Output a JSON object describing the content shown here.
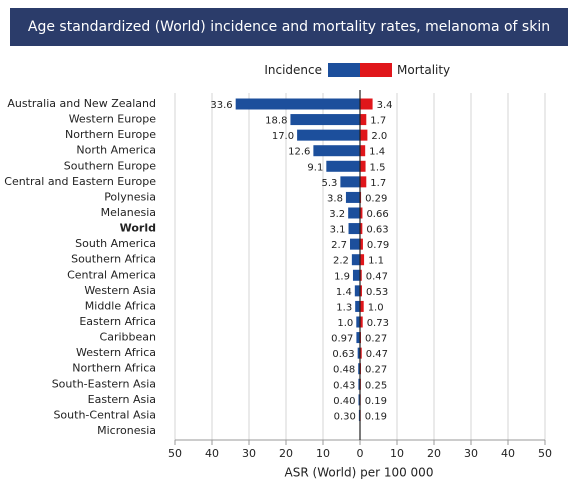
{
  "chart_data": {
    "type": "bar",
    "layout": "back-to-back",
    "title": "Age standardized (World) incidence and mortality rates, melanoma of skin",
    "x_label": "ASR (World) per 100 000",
    "categories": [
      "Australia and New Zealand",
      "Western Europe",
      "Northern Europe",
      "North America",
      "Southern Europe",
      "Central and Eastern Europe",
      "Polynesia",
      "Melanesia",
      "World",
      "South America",
      "Southern Africa",
      "Central America",
      "Western Asia",
      "Middle Africa",
      "Eastern Africa",
      "Caribbean",
      "Western Africa",
      "Northern Africa",
      "South-Eastern Asia",
      "Eastern Asia",
      "South-Central Asia",
      "Micronesia"
    ],
    "highlight_categories": [
      "World"
    ],
    "series": [
      {
        "name": "Incidence",
        "color": "#1c4f9c",
        "side": "left",
        "values": [
          33.6,
          18.8,
          17.0,
          12.6,
          9.1,
          5.3,
          3.8,
          3.2,
          3.1,
          2.7,
          2.2,
          1.9,
          1.4,
          1.3,
          1.0,
          0.97,
          0.63,
          0.48,
          0.43,
          0.4,
          0.3,
          null
        ],
        "value_labels": [
          "33.6",
          "18.8",
          "17.0",
          "12.6",
          "9.1",
          "5.3",
          "3.8",
          "3.2",
          "3.1",
          "2.7",
          "2.2",
          "1.9",
          "1.4",
          "1.3",
          "1.0",
          "0.97",
          "0.63",
          "0.48",
          "0.43",
          "0.40",
          "0.30",
          null
        ]
      },
      {
        "name": "Mortality",
        "color": "#e0161b",
        "side": "right",
        "values": [
          3.4,
          1.7,
          2.0,
          1.4,
          1.5,
          1.7,
          0.29,
          0.66,
          0.63,
          0.79,
          1.1,
          0.47,
          0.53,
          1.0,
          0.73,
          0.27,
          0.47,
          0.27,
          0.25,
          0.19,
          0.19,
          null
        ],
        "value_labels": [
          "3.4",
          "1.7",
          "2.0",
          "1.4",
          "1.5",
          "1.7",
          "0.29",
          "0.66",
          "0.63",
          "0.79",
          "1.1",
          "0.47",
          "0.53",
          "1.0",
          "0.73",
          "0.27",
          "0.47",
          "0.27",
          "0.25",
          "0.19",
          "0.19",
          null
        ]
      }
    ],
    "xlim": [
      -50,
      50
    ],
    "xticks": [
      {
        "value": -50,
        "label": "50"
      },
      {
        "value": -40,
        "label": "40"
      },
      {
        "value": -30,
        "label": "30"
      },
      {
        "value": -20,
        "label": "20"
      },
      {
        "value": -10,
        "label": "10"
      },
      0,
      10,
      20,
      30,
      40,
      50
    ],
    "grid": true
  }
}
